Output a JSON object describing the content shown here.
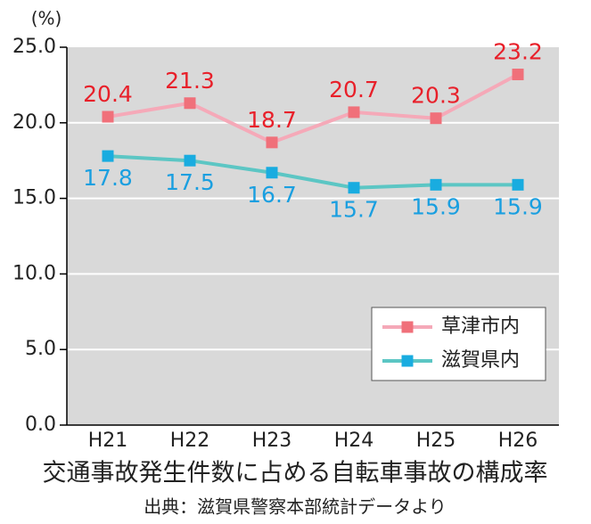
{
  "chart_data": {
    "type": "line",
    "unit_label": "(%)",
    "title": "交通事故発生件数に占める自転車事故の構成率",
    "source": "出典：滋賀県警察本部統計データより",
    "categories": [
      "H21",
      "H22",
      "H23",
      "H24",
      "H25",
      "H26"
    ],
    "series": [
      {
        "name": "草津市内",
        "color": "#f5a9b8",
        "marker_color": "#f0707a",
        "label_color": "#e8202a",
        "label_side": "above",
        "values": [
          20.4,
          21.3,
          18.7,
          20.7,
          20.3,
          23.2
        ]
      },
      {
        "name": "滋賀県内",
        "color": "#5cc6c4",
        "marker_color": "#19ace0",
        "label_color": "#1a9fe0",
        "label_side": "below",
        "values": [
          17.8,
          17.5,
          16.7,
          15.7,
          15.9,
          15.9
        ]
      }
    ],
    "ylim": [
      0,
      25
    ],
    "yticks": [
      {
        "value": 0,
        "label": "0.0"
      },
      {
        "value": 5,
        "label": "5.0"
      },
      {
        "value": 10,
        "label": "10.0"
      },
      {
        "value": 15,
        "label": "15.0"
      },
      {
        "value": 20,
        "label": "20.0"
      },
      {
        "value": 25,
        "label": "25.0"
      }
    ],
    "grid": true,
    "legend": "lower right"
  }
}
